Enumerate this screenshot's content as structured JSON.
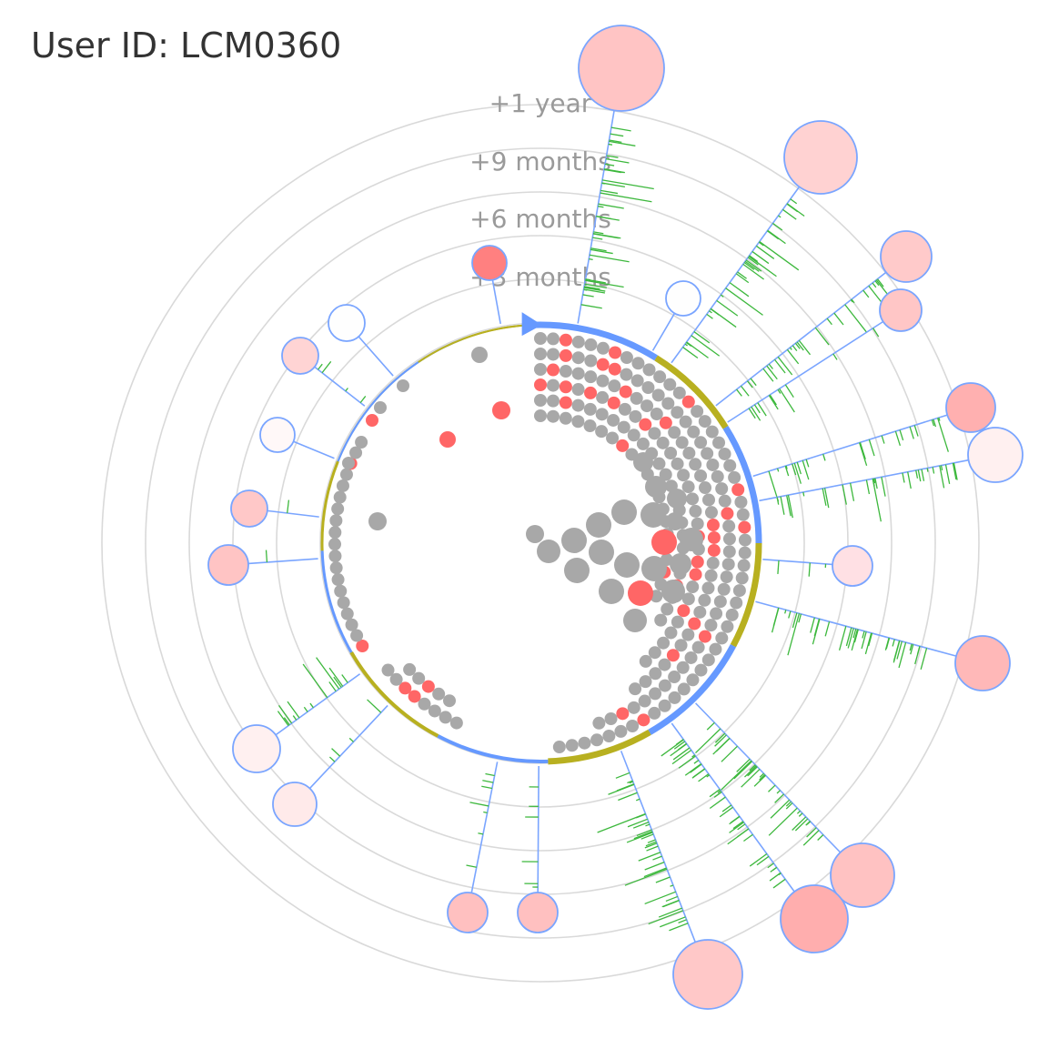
{
  "header": {
    "user_id_text": "User ID: LCM0360"
  },
  "colors": {
    "ring": "#d9d9d9",
    "stem": "#7aa5ff",
    "spike": "#3db83d",
    "node_stroke": "#7aa5ff",
    "arc_blue": "#6699ff",
    "arc_olive": "#b8b020",
    "dot_gray": "#a8a8a8",
    "dot_red": "#ff6666",
    "label": "#9a9a9a"
  },
  "timeline": {
    "ring_labels": [
      "+3 months",
      "+6 months",
      "+9 months",
      "+1 year"
    ]
  },
  "nodes_legend": {
    "note_free": null
  }
}
